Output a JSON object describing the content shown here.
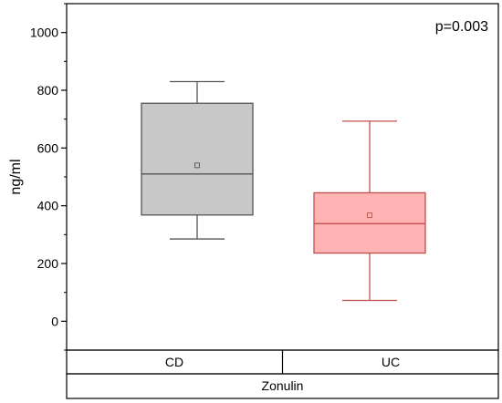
{
  "chart_data": {
    "type": "box",
    "ylabel": "ng/ml",
    "annotation": "p=0.003",
    "ylim": [
      -100,
      1100
    ],
    "yticks": [
      0,
      200,
      400,
      600,
      800,
      1000
    ],
    "yminor_step": 100,
    "categories": [
      "CD",
      "UC"
    ],
    "group_label": "Zonulin",
    "series": [
      {
        "category": "CD",
        "whisker_low": 285,
        "q1": 368,
        "median": 510,
        "mean": 540,
        "q3": 755,
        "whisker_high": 830,
        "fill": "#c8c8c8",
        "stroke": "#555555"
      },
      {
        "category": "UC",
        "whisker_low": 72,
        "q1": 236,
        "median": 338,
        "mean": 367,
        "q3": 445,
        "whisker_high": 693,
        "fill": "#ffb3b3",
        "stroke": "#c0504d"
      }
    ]
  }
}
